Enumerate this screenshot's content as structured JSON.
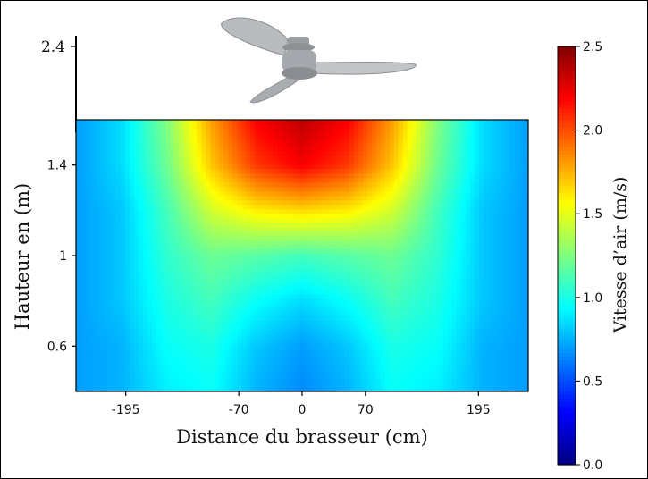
{
  "chart_data": {
    "type": "heatmap",
    "title": "",
    "xlabel": "Distance du brasseur (cm)",
    "ylabel": "Hauteur en (m)",
    "x_tick_labels": [
      "-195",
      "-70",
      "0",
      "70",
      "195"
    ],
    "x_tick_values": [
      -195,
      -70,
      0,
      70,
      195
    ],
    "y_tick_labels": [
      "0.6",
      "1",
      "1.4"
    ],
    "y_tick_values": [
      0.6,
      1.0,
      1.4
    ],
    "extra_axis_label": "2.4",
    "xlim": [
      -250,
      250
    ],
    "ylim": [
      0.4,
      1.6
    ],
    "colorbar": {
      "label": "Vitesse d’air (m/s)",
      "range": [
        0,
        2.5
      ],
      "tick_labels": [
        "0.0",
        "0.5",
        "1.0",
        "1.5",
        "2.0",
        "2.5"
      ],
      "tick_values": [
        0,
        0.5,
        1.0,
        1.5,
        2.0,
        2.5
      ],
      "colormap": "jet"
    },
    "x": [
      -250,
      -200,
      -150,
      -100,
      -50,
      0,
      50,
      100,
      150,
      200,
      250
    ],
    "y": [
      0.4,
      0.6,
      0.8,
      1.0,
      1.2,
      1.4,
      1.6
    ],
    "z": [
      [
        0.7,
        0.75,
        0.9,
        0.95,
        0.75,
        0.65,
        0.75,
        0.95,
        0.9,
        0.75,
        0.7
      ],
      [
        0.7,
        0.75,
        0.95,
        1.0,
        0.8,
        0.7,
        0.8,
        1.0,
        0.95,
        0.75,
        0.7
      ],
      [
        0.7,
        0.8,
        1.0,
        1.1,
        0.95,
        0.85,
        0.95,
        1.1,
        1.0,
        0.8,
        0.7
      ],
      [
        0.7,
        0.8,
        1.05,
        1.2,
        1.15,
        1.1,
        1.15,
        1.2,
        1.05,
        0.8,
        0.7
      ],
      [
        0.7,
        0.8,
        1.1,
        1.45,
        1.6,
        1.65,
        1.6,
        1.45,
        1.1,
        0.8,
        0.7
      ],
      [
        0.7,
        0.85,
        1.2,
        1.7,
        2.05,
        2.2,
        2.05,
        1.7,
        1.2,
        0.85,
        0.7
      ],
      [
        0.7,
        0.85,
        1.25,
        1.8,
        2.2,
        2.35,
        2.2,
        1.8,
        1.25,
        0.85,
        0.7
      ]
    ]
  }
}
